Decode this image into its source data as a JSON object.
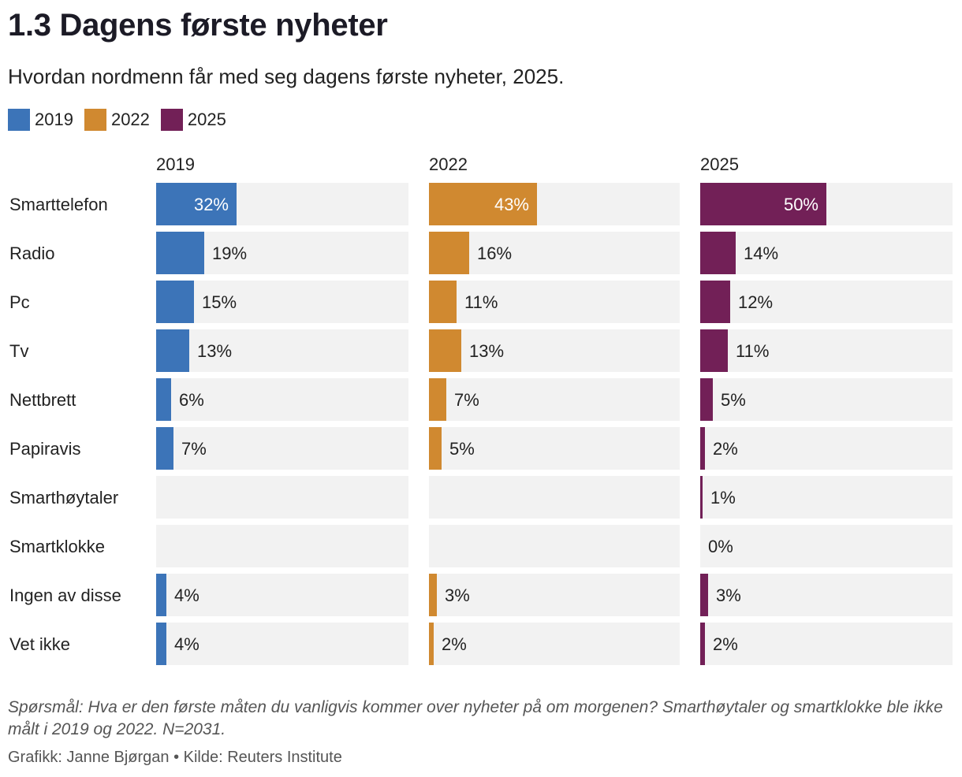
{
  "title": "1.3 Dagens første nyheter",
  "subtitle": "Hvordan nordmenn får med seg dagens første nyheter, 2025.",
  "legend": [
    {
      "label": "2019",
      "color": "#3c74b8"
    },
    {
      "label": "2022",
      "color": "#d08930"
    },
    {
      "label": "2025",
      "color": "#722057"
    }
  ],
  "chart_data": {
    "type": "bar",
    "orientation": "horizontal",
    "xlim": [
      0,
      100
    ],
    "track_color": "#f2f2f2",
    "categories": [
      "Smarttelefon",
      "Radio",
      "Pc",
      "Tv",
      "Nettbrett",
      "Papiravis",
      "Smarthøytaler",
      "Smartklokke",
      "Ingen av disse",
      "Vet ikke"
    ],
    "series": [
      {
        "name": "2019",
        "color": "#3c74b8",
        "values": [
          32,
          19,
          15,
          13,
          6,
          7,
          null,
          null,
          4,
          4
        ]
      },
      {
        "name": "2022",
        "color": "#d08930",
        "values": [
          43,
          16,
          11,
          13,
          7,
          5,
          null,
          null,
          3,
          2
        ]
      },
      {
        "name": "2025",
        "color": "#722057",
        "values": [
          50,
          14,
          12,
          11,
          5,
          2,
          1,
          0,
          3,
          2
        ]
      }
    ]
  },
  "footnote": "Spørsmål: Hva er den første måten du vanligvis kommer over nyheter på om morgenen? Smarthøytaler og smartklokke ble ikke målt i 2019 og 2022. N=2031.",
  "credit": "Grafikk: Janne Bjørgan • Kilde: Reuters Institute"
}
